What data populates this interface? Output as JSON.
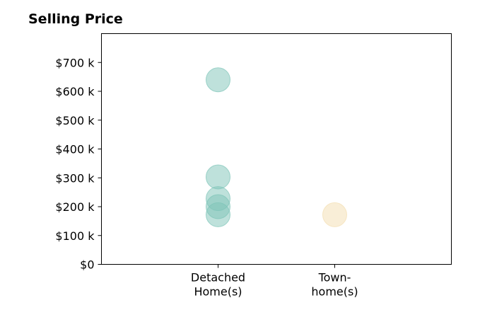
{
  "chart_data": {
    "type": "scatter",
    "title": "Selling Price",
    "xlabel": "",
    "ylabel": "",
    "categories": [
      "Detached\nHome(s)",
      "Town-\nhome(s)"
    ],
    "y_tick_labels": [
      "$0",
      "$100 k",
      "$200 k",
      "$300 k",
      "$400 k",
      "$500 k",
      "$600 k",
      "$700 k"
    ],
    "y_ticks": [
      0,
      100000,
      200000,
      300000,
      400000,
      500000,
      600000,
      700000
    ],
    "ylim": [
      0,
      800000
    ],
    "xlim": [
      -1,
      2
    ],
    "grid": false,
    "series": [
      {
        "category_index": 0,
        "color": "#7ec4b8",
        "values": [
          640000,
          303000,
          228000,
          200000,
          172000
        ]
      },
      {
        "category_index": 1,
        "color": "#f3deb0",
        "values": [
          172000
        ]
      }
    ]
  }
}
